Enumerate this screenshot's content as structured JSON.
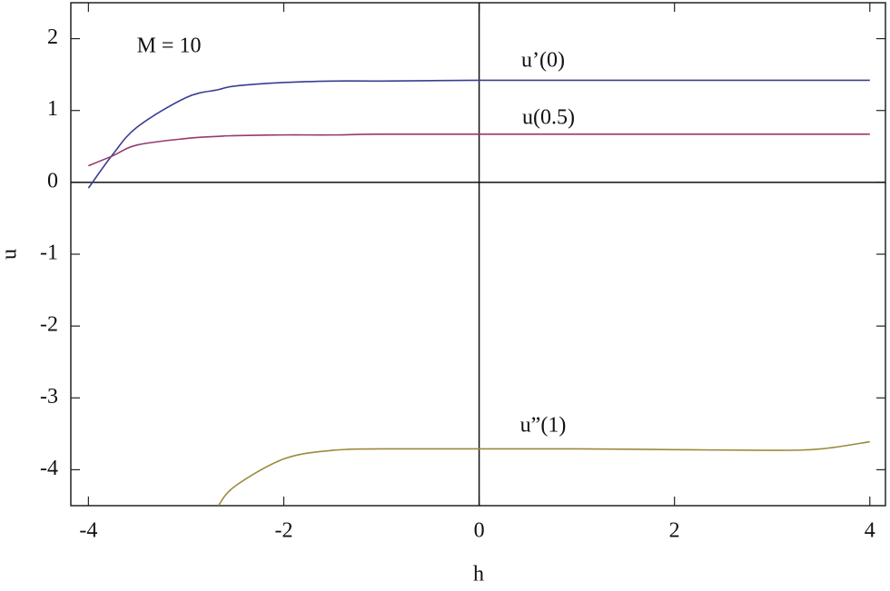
{
  "chart_data": {
    "type": "line",
    "x_label": "h",
    "y_label": "u",
    "x": [
      -4,
      -3.75,
      -3.5,
      -3,
      -2.67,
      -2.5,
      -2,
      -1.5,
      -1,
      0,
      1,
      2,
      3,
      3.5,
      4
    ],
    "series": [
      {
        "name": "u’(0)",
        "color": "#3a3d91",
        "values": [
          -0.08,
          0.39,
          0.77,
          1.18,
          1.29,
          1.34,
          1.39,
          1.41,
          1.41,
          1.42,
          1.42,
          1.42,
          1.42,
          1.42,
          1.42
        ]
      },
      {
        "name": "u(0.5)",
        "color": "#963a6c",
        "values": [
          0.23,
          0.37,
          0.52,
          0.61,
          0.64,
          0.65,
          0.66,
          0.66,
          0.67,
          0.67,
          0.67,
          0.67,
          0.67,
          0.67,
          0.67
        ]
      },
      {
        "name": "u”(1)",
        "color": "#9c8a3a",
        "values": [
          null,
          null,
          null,
          null,
          -4.5,
          -4.23,
          -3.85,
          -3.73,
          -3.71,
          -3.71,
          -3.71,
          -3.72,
          -3.73,
          -3.71,
          -3.61
        ]
      }
    ],
    "annotations": [
      "M = 10"
    ],
    "xlim": [
      -4.18,
      4.16
    ],
    "ylim": [
      -4.5,
      2.5
    ],
    "xticks": [
      -4,
      -2,
      0,
      2,
      4
    ],
    "yticks": [
      -4,
      -3,
      -2,
      -1,
      0,
      1,
      2
    ],
    "zero_lines": true
  }
}
